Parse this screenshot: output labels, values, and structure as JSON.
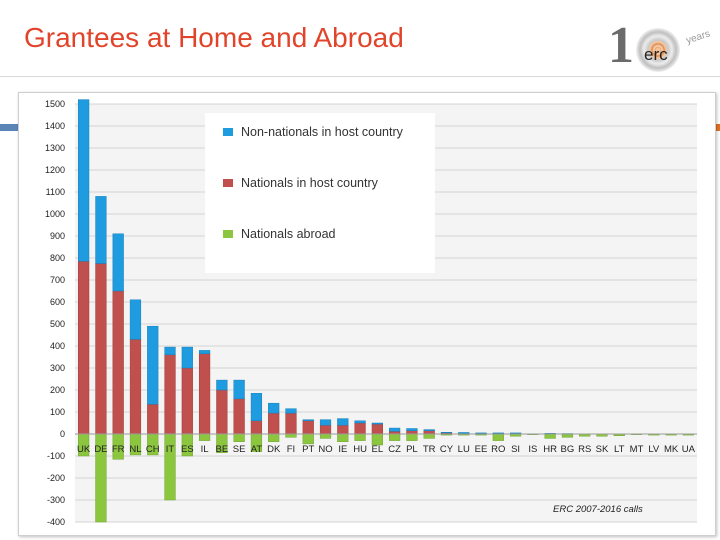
{
  "header": {
    "title": "Grantees at Home and Abroad",
    "logo": {
      "number": "1",
      "text": "erc",
      "years": "years",
      "accent_color": "#e37222"
    }
  },
  "chart_data": {
    "type": "bar",
    "stacked": true,
    "annotation": "ERC 2007-2016 calls",
    "ylim": [
      -400,
      1500
    ],
    "yticks": [
      1500,
      1400,
      1300,
      1200,
      1100,
      1000,
      900,
      800,
      700,
      600,
      500,
      400,
      300,
      200,
      100,
      0,
      -100,
      -200,
      -300,
      -400
    ],
    "grid": true,
    "legend_position": "top-center",
    "categories": [
      "UK",
      "DE",
      "FR",
      "NL",
      "CH",
      "IT",
      "ES",
      "IL",
      "BE",
      "SE",
      "AT",
      "DK",
      "FI",
      "PT",
      "NO",
      "IE",
      "HU",
      "EL",
      "CZ",
      "PL",
      "TR",
      "CY",
      "LU",
      "EE",
      "RO",
      "SI",
      "IS",
      "HR",
      "BG",
      "RS",
      "SK",
      "LT",
      "MT",
      "LV",
      "MK",
      "UA"
    ],
    "series": [
      {
        "name": "Non-nationals in host country",
        "color": "#1f9be0",
        "values": [
          735,
          305,
          260,
          180,
          355,
          35,
          95,
          15,
          45,
          85,
          125,
          45,
          20,
          5,
          25,
          30,
          10,
          5,
          15,
          10,
          5,
          3,
          5,
          3,
          2,
          3,
          0,
          2,
          2,
          1,
          1,
          1,
          0,
          0,
          0,
          0
        ]
      },
      {
        "name": "Nationals in host country",
        "color": "#c0504d",
        "values": [
          785,
          775,
          650,
          430,
          135,
          360,
          300,
          365,
          200,
          160,
          60,
          95,
          95,
          60,
          40,
          40,
          50,
          45,
          12,
          15,
          15,
          5,
          2,
          2,
          3,
          2,
          1,
          1,
          0,
          0,
          0,
          0,
          1,
          0,
          0,
          0
        ]
      },
      {
        "name": "Nationals abroad",
        "color": "#8cc63f",
        "values": [
          -100,
          -400,
          -115,
          -95,
          -95,
          -300,
          -100,
          -30,
          -85,
          -35,
          -80,
          -35,
          -15,
          -45,
          -20,
          -35,
          -30,
          -50,
          -30,
          -30,
          -20,
          -5,
          -5,
          -5,
          -30,
          -10,
          -3,
          -20,
          -15,
          -10,
          -10,
          -8,
          -3,
          -5,
          -5,
          -5
        ]
      }
    ]
  }
}
